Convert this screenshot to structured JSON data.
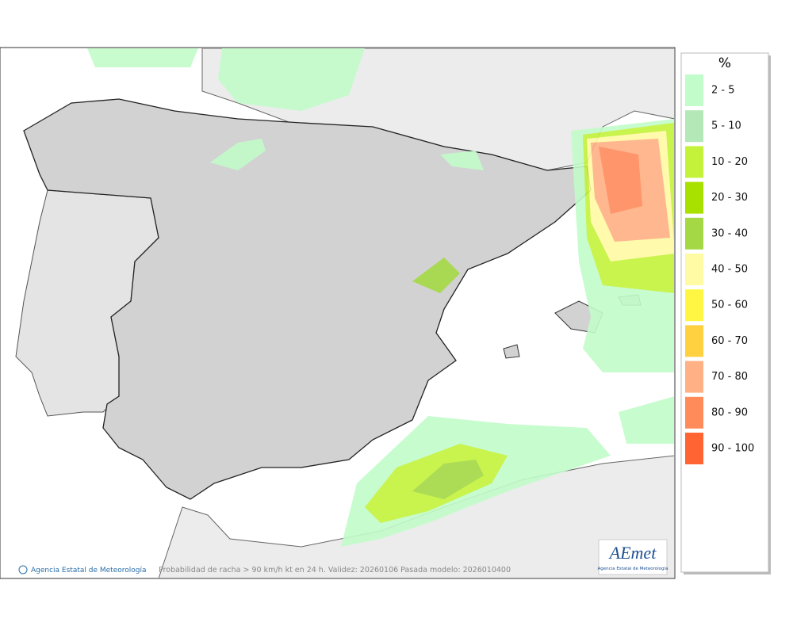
{
  "legend": {
    "title": "%",
    "items": [
      {
        "label": "2 - 5",
        "color": "#c2fcca"
      },
      {
        "label": "5 - 10",
        "color": "#b4e8b6"
      },
      {
        "label": "10 - 20",
        "color": "#c4f23a"
      },
      {
        "label": "20 - 30",
        "color": "#a8e000"
      },
      {
        "label": "30 - 40",
        "color": "#a4d844"
      },
      {
        "label": "40 - 50",
        "color": "#fffaa4"
      },
      {
        "label": "50 - 60",
        "color": "#fff644"
      },
      {
        "label": "60 - 70",
        "color": "#ffd040"
      },
      {
        "label": "70 - 80",
        "color": "#ffb084"
      },
      {
        "label": "80 - 90",
        "color": "#ff8a5a"
      },
      {
        "label": "90 - 100",
        "color": "#ff6432"
      }
    ]
  },
  "footer": {
    "credit": "Agencia Estatal de Meteorología",
    "caption": "Probabilidad de racha > 90 km/h kt en 24 h. Validez: 20260106 Pasada modelo: 2026010400"
  },
  "logo": {
    "name": "AEmet",
    "subtitle": "Agencia Estatal de Meteorología"
  }
}
